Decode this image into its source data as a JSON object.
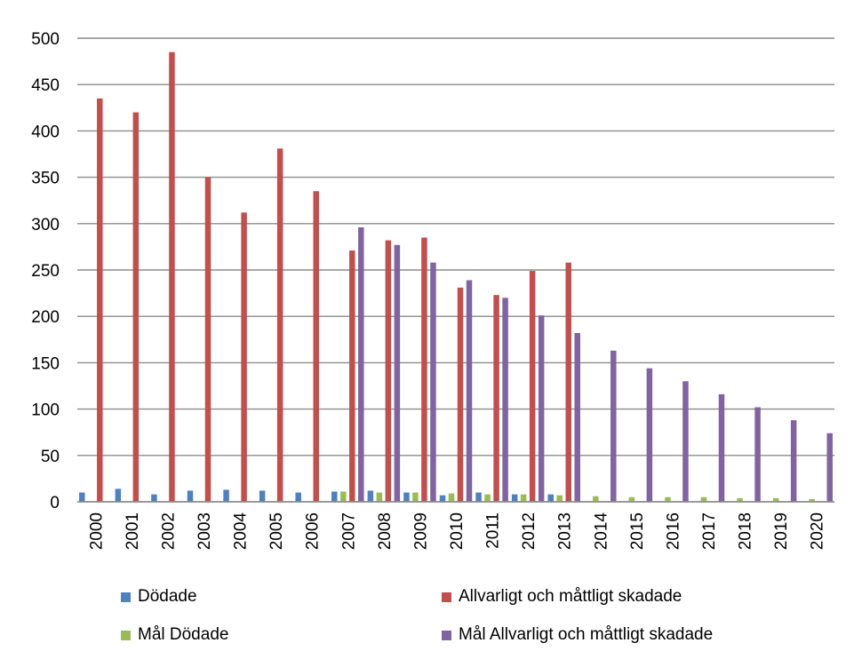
{
  "chart_data": {
    "type": "bar",
    "title": "",
    "xlabel": "",
    "ylabel": "",
    "ylim": [
      0,
      500
    ],
    "yticks": [
      0,
      50,
      100,
      150,
      200,
      250,
      300,
      350,
      400,
      450,
      500
    ],
    "grid": true,
    "legend_position": "bottom",
    "categories": [
      "2000",
      "2001",
      "2002",
      "2003",
      "2004",
      "2005",
      "2006",
      "2007",
      "2008",
      "2009",
      "2010",
      "2011",
      "2012",
      "2013",
      "2014",
      "2015",
      "2016",
      "2017",
      "2018",
      "2019",
      "2020"
    ],
    "series": [
      {
        "name": "Dödade",
        "color": "#4F81BD",
        "values": [
          10,
          14,
          8,
          12,
          13,
          12,
          10,
          11,
          12,
          10,
          7,
          10,
          8,
          8,
          null,
          null,
          null,
          null,
          null,
          null,
          null
        ]
      },
      {
        "name": "Mål Dödade",
        "color": "#9BBB59",
        "values": [
          null,
          null,
          null,
          null,
          null,
          null,
          null,
          11,
          10,
          10,
          9,
          8,
          8,
          7,
          6,
          5,
          5,
          5,
          4,
          4,
          3
        ]
      },
      {
        "name": "Allvarligt och måttligt skadade",
        "color": "#C0504D",
        "values": [
          435,
          420,
          485,
          350,
          312,
          381,
          335,
          271,
          282,
          285,
          231,
          223,
          249,
          258,
          null,
          null,
          null,
          null,
          null,
          null,
          null
        ]
      },
      {
        "name": "Mål Allvarligt och måttligt skadade",
        "color": "#8064A2",
        "values": [
          null,
          null,
          null,
          null,
          null,
          null,
          null,
          296,
          277,
          258,
          239,
          220,
          201,
          182,
          163,
          144,
          130,
          116,
          102,
          88,
          74
        ]
      }
    ],
    "legend": [
      {
        "series": "Dödade",
        "color": "#4F81BD"
      },
      {
        "series": "Allvarligt och måttligt skadade",
        "color": "#C0504D"
      },
      {
        "series": "Mål Dödade",
        "color": "#9BBB59"
      },
      {
        "series": "Mål Allvarligt och måttligt skadade",
        "color": "#8064A2"
      }
    ]
  }
}
